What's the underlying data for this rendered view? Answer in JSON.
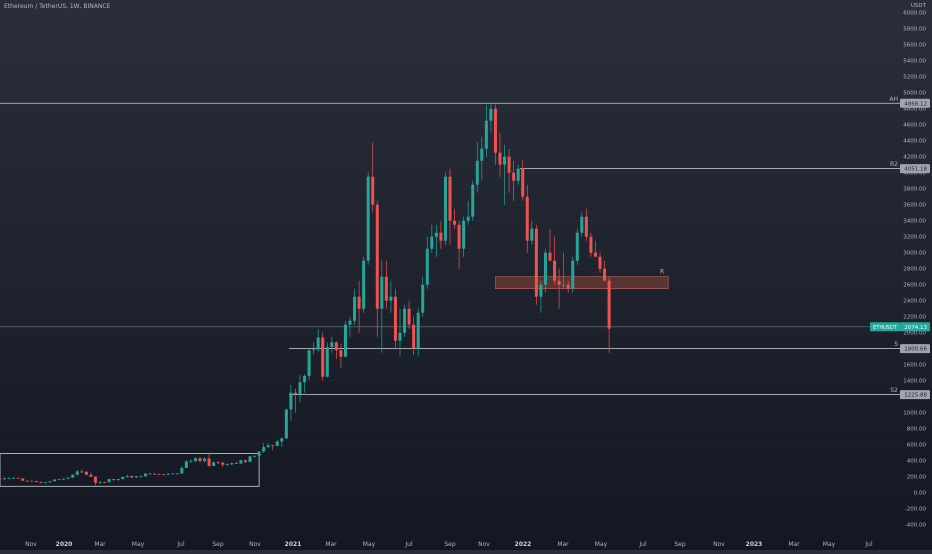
{
  "header": {
    "symbol_line": "Ethereum / TetherUS, 1W, BINANCE",
    "currency": "USDT"
  },
  "colors": {
    "up": "#26a69a",
    "down": "#ef5350",
    "level_line": "#d1d4dc",
    "price_line": "#787b86",
    "label_bg": "#a0a4ae",
    "label_current_bg": "#26a69a",
    "zone_fill": "#6d3b34",
    "axis_text": "#b2b5be"
  },
  "chart_data": {
    "type": "candlestick",
    "title": "Ethereum / TetherUS, 1W, BINANCE",
    "x_ticks": [
      "Nov",
      "2020",
      "Mar",
      "May",
      "Jul",
      "Sep",
      "Nov",
      "2021",
      "Mar",
      "May",
      "Jul",
      "Sep",
      "Nov",
      "2022",
      "Mar",
      "May",
      "Jul",
      "Sep",
      "Nov",
      "2023",
      "Mar",
      "May",
      "Jul"
    ],
    "x_range": [
      "2019-10-14",
      "2023-07-31"
    ],
    "y_ticks": [
      -400,
      -200,
      0,
      200,
      400,
      600,
      800,
      1000,
      1200,
      1400,
      1600,
      1800,
      2000,
      2200,
      2400,
      2600,
      2800,
      3000,
      3200,
      3400,
      3600,
      3800,
      4000,
      4200,
      4400,
      4600,
      4800,
      5000,
      5200,
      5400,
      5600,
      5800,
      6000
    ],
    "ylim": [
      -500,
      6100
    ],
    "y_tick_format": "2dp",
    "y_unit": "USDT",
    "levels": [
      {
        "tag": "AH",
        "value": 4868.12
      },
      {
        "tag": "R2",
        "value": 4051.18
      },
      {
        "tag": "S",
        "value": 1800.66
      },
      {
        "tag": "S2",
        "value": 1225.88
      }
    ],
    "current_price": {
      "symbol": "ETHUSDT",
      "value": 2074.13
    },
    "zone": {
      "tag": "R",
      "low": 2550,
      "high": 2700,
      "start": "2021-11-15",
      "end": "2022-08-08"
    },
    "box": {
      "low": 80,
      "high": 490,
      "start": "2019-10-14",
      "end": "2020-11-16"
    },
    "candles": [
      {
        "t": "2019-10-14",
        "o": 175,
        "h": 185,
        "l": 165,
        "c": 170
      },
      {
        "t": "2019-10-21",
        "o": 170,
        "h": 190,
        "l": 160,
        "c": 180
      },
      {
        "t": "2019-10-28",
        "o": 180,
        "h": 190,
        "l": 175,
        "c": 183
      },
      {
        "t": "2019-11-04",
        "o": 183,
        "h": 195,
        "l": 175,
        "c": 185
      },
      {
        "t": "2019-11-11",
        "o": 185,
        "h": 190,
        "l": 175,
        "c": 178
      },
      {
        "t": "2019-11-18",
        "o": 178,
        "h": 180,
        "l": 145,
        "c": 150
      },
      {
        "t": "2019-11-25",
        "o": 150,
        "h": 155,
        "l": 140,
        "c": 148
      },
      {
        "t": "2019-12-02",
        "o": 148,
        "h": 152,
        "l": 140,
        "c": 145
      },
      {
        "t": "2019-12-09",
        "o": 145,
        "h": 150,
        "l": 130,
        "c": 133
      },
      {
        "t": "2019-12-16",
        "o": 133,
        "h": 140,
        "l": 118,
        "c": 128
      },
      {
        "t": "2019-12-23",
        "o": 128,
        "h": 135,
        "l": 125,
        "c": 130
      },
      {
        "t": "2019-12-30",
        "o": 130,
        "h": 145,
        "l": 127,
        "c": 143
      },
      {
        "t": "2020-01-06",
        "o": 143,
        "h": 170,
        "l": 140,
        "c": 165
      },
      {
        "t": "2020-01-13",
        "o": 165,
        "h": 175,
        "l": 160,
        "c": 168
      },
      {
        "t": "2020-01-20",
        "o": 168,
        "h": 180,
        "l": 160,
        "c": 175
      },
      {
        "t": "2020-01-27",
        "o": 175,
        "h": 190,
        "l": 170,
        "c": 188
      },
      {
        "t": "2020-02-03",
        "o": 188,
        "h": 230,
        "l": 185,
        "c": 225
      },
      {
        "t": "2020-02-10",
        "o": 225,
        "h": 285,
        "l": 220,
        "c": 265
      },
      {
        "t": "2020-02-17",
        "o": 265,
        "h": 290,
        "l": 245,
        "c": 262
      },
      {
        "t": "2020-02-24",
        "o": 262,
        "h": 270,
        "l": 220,
        "c": 225
      },
      {
        "t": "2020-03-02",
        "o": 225,
        "h": 250,
        "l": 195,
        "c": 200
      },
      {
        "t": "2020-03-09",
        "o": 200,
        "h": 205,
        "l": 90,
        "c": 125
      },
      {
        "t": "2020-03-16",
        "o": 125,
        "h": 150,
        "l": 110,
        "c": 132
      },
      {
        "t": "2020-03-23",
        "o": 132,
        "h": 140,
        "l": 125,
        "c": 130
      },
      {
        "t": "2020-03-30",
        "o": 130,
        "h": 175,
        "l": 128,
        "c": 170
      },
      {
        "t": "2020-04-06",
        "o": 170,
        "h": 175,
        "l": 150,
        "c": 158
      },
      {
        "t": "2020-04-13",
        "o": 158,
        "h": 175,
        "l": 150,
        "c": 170
      },
      {
        "t": "2020-04-20",
        "o": 170,
        "h": 200,
        "l": 165,
        "c": 197
      },
      {
        "t": "2020-04-27",
        "o": 197,
        "h": 225,
        "l": 192,
        "c": 208
      },
      {
        "t": "2020-05-04",
        "o": 208,
        "h": 215,
        "l": 185,
        "c": 190
      },
      {
        "t": "2020-05-11",
        "o": 190,
        "h": 210,
        "l": 185,
        "c": 205
      },
      {
        "t": "2020-05-18",
        "o": 205,
        "h": 215,
        "l": 195,
        "c": 205
      },
      {
        "t": "2020-05-25",
        "o": 205,
        "h": 245,
        "l": 200,
        "c": 240
      },
      {
        "t": "2020-06-01",
        "o": 240,
        "h": 250,
        "l": 232,
        "c": 238
      },
      {
        "t": "2020-06-08",
        "o": 238,
        "h": 245,
        "l": 225,
        "c": 232
      },
      {
        "t": "2020-06-15",
        "o": 232,
        "h": 240,
        "l": 225,
        "c": 230
      },
      {
        "t": "2020-06-22",
        "o": 230,
        "h": 235,
        "l": 220,
        "c": 225
      },
      {
        "t": "2020-06-29",
        "o": 225,
        "h": 240,
        "l": 222,
        "c": 238
      },
      {
        "t": "2020-07-06",
        "o": 238,
        "h": 245,
        "l": 230,
        "c": 240
      },
      {
        "t": "2020-07-13",
        "o": 240,
        "h": 245,
        "l": 230,
        "c": 238
      },
      {
        "t": "2020-07-20",
        "o": 238,
        "h": 330,
        "l": 236,
        "c": 310
      },
      {
        "t": "2020-07-27",
        "o": 310,
        "h": 410,
        "l": 305,
        "c": 390
      },
      {
        "t": "2020-08-03",
        "o": 390,
        "h": 420,
        "l": 370,
        "c": 395
      },
      {
        "t": "2020-08-10",
        "o": 395,
        "h": 440,
        "l": 380,
        "c": 430
      },
      {
        "t": "2020-08-17",
        "o": 430,
        "h": 445,
        "l": 380,
        "c": 395
      },
      {
        "t": "2020-08-24",
        "o": 395,
        "h": 440,
        "l": 380,
        "c": 428
      },
      {
        "t": "2020-08-31",
        "o": 428,
        "h": 490,
        "l": 320,
        "c": 335
      },
      {
        "t": "2020-09-07",
        "o": 335,
        "h": 390,
        "l": 330,
        "c": 380
      },
      {
        "t": "2020-09-14",
        "o": 380,
        "h": 395,
        "l": 360,
        "c": 375
      },
      {
        "t": "2020-09-21",
        "o": 375,
        "h": 385,
        "l": 320,
        "c": 350
      },
      {
        "t": "2020-09-28",
        "o": 350,
        "h": 365,
        "l": 335,
        "c": 355
      },
      {
        "t": "2020-10-05",
        "o": 355,
        "h": 375,
        "l": 345,
        "c": 370
      },
      {
        "t": "2020-10-12",
        "o": 370,
        "h": 385,
        "l": 360,
        "c": 365
      },
      {
        "t": "2020-10-19",
        "o": 365,
        "h": 415,
        "l": 360,
        "c": 405
      },
      {
        "t": "2020-10-26",
        "o": 405,
        "h": 410,
        "l": 370,
        "c": 385
      },
      {
        "t": "2020-11-02",
        "o": 385,
        "h": 460,
        "l": 380,
        "c": 455
      },
      {
        "t": "2020-11-09",
        "o": 455,
        "h": 470,
        "l": 440,
        "c": 460
      },
      {
        "t": "2020-11-16",
        "o": 460,
        "h": 520,
        "l": 455,
        "c": 515
      },
      {
        "t": "2020-11-23",
        "o": 515,
        "h": 620,
        "l": 500,
        "c": 570
      },
      {
        "t": "2020-11-30",
        "o": 570,
        "h": 620,
        "l": 560,
        "c": 590
      },
      {
        "t": "2020-12-07",
        "o": 590,
        "h": 600,
        "l": 530,
        "c": 585
      },
      {
        "t": "2020-12-14",
        "o": 585,
        "h": 665,
        "l": 580,
        "c": 640
      },
      {
        "t": "2020-12-21",
        "o": 640,
        "h": 690,
        "l": 570,
        "c": 680
      },
      {
        "t": "2020-12-28",
        "o": 680,
        "h": 1050,
        "l": 670,
        "c": 1040
      },
      {
        "t": "2021-01-04",
        "o": 1040,
        "h": 1350,
        "l": 900,
        "c": 1250
      },
      {
        "t": "2021-01-11",
        "o": 1250,
        "h": 1300,
        "l": 1000,
        "c": 1230
      },
      {
        "t": "2021-01-18",
        "o": 1230,
        "h": 1470,
        "l": 1130,
        "c": 1380
      },
      {
        "t": "2021-01-25",
        "o": 1380,
        "h": 1480,
        "l": 1250,
        "c": 1460
      },
      {
        "t": "2021-02-01",
        "o": 1460,
        "h": 1800,
        "l": 1400,
        "c": 1780
      },
      {
        "t": "2021-02-08",
        "o": 1780,
        "h": 1880,
        "l": 1730,
        "c": 1790
      },
      {
        "t": "2021-02-15",
        "o": 1790,
        "h": 2040,
        "l": 1760,
        "c": 1940
      },
      {
        "t": "2021-02-22",
        "o": 1940,
        "h": 2000,
        "l": 1400,
        "c": 1450
      },
      {
        "t": "2021-03-01",
        "o": 1450,
        "h": 1880,
        "l": 1440,
        "c": 1820
      },
      {
        "t": "2021-03-08",
        "o": 1820,
        "h": 1950,
        "l": 1750,
        "c": 1880
      },
      {
        "t": "2021-03-15",
        "o": 1880,
        "h": 1890,
        "l": 1670,
        "c": 1780
      },
      {
        "t": "2021-03-22",
        "o": 1780,
        "h": 1860,
        "l": 1560,
        "c": 1700
      },
      {
        "t": "2021-03-29",
        "o": 1700,
        "h": 2150,
        "l": 1700,
        "c": 2100
      },
      {
        "t": "2021-04-05",
        "o": 2100,
        "h": 2200,
        "l": 1950,
        "c": 2150
      },
      {
        "t": "2021-04-12",
        "o": 2150,
        "h": 2550,
        "l": 2100,
        "c": 2450
      },
      {
        "t": "2021-04-19",
        "o": 2450,
        "h": 2650,
        "l": 2000,
        "c": 2300
      },
      {
        "t": "2021-04-26",
        "o": 2300,
        "h": 2950,
        "l": 2250,
        "c": 2900
      },
      {
        "t": "2021-05-03",
        "o": 2900,
        "h": 4000,
        "l": 2850,
        "c": 3950
      },
      {
        "t": "2021-05-10",
        "o": 3950,
        "h": 4380,
        "l": 3500,
        "c": 3600
      },
      {
        "t": "2021-05-17",
        "o": 3600,
        "h": 3650,
        "l": 1950,
        "c": 2300
      },
      {
        "t": "2021-05-24",
        "o": 2300,
        "h": 2900,
        "l": 1750,
        "c": 2700
      },
      {
        "t": "2021-05-31",
        "o": 2700,
        "h": 2900,
        "l": 2300,
        "c": 2400
      },
      {
        "t": "2021-06-07",
        "o": 2400,
        "h": 2650,
        "l": 2250,
        "c": 2450
      },
      {
        "t": "2021-06-14",
        "o": 2450,
        "h": 2550,
        "l": 1800,
        "c": 1900
      },
      {
        "t": "2021-06-21",
        "o": 1900,
        "h": 2300,
        "l": 1700,
        "c": 2000
      },
      {
        "t": "2021-06-28",
        "o": 2000,
        "h": 2350,
        "l": 1950,
        "c": 2300
      },
      {
        "t": "2021-07-05",
        "o": 2300,
        "h": 2400,
        "l": 2050,
        "c": 2100
      },
      {
        "t": "2021-07-12",
        "o": 2100,
        "h": 2200,
        "l": 1720,
        "c": 1800
      },
      {
        "t": "2021-07-19",
        "o": 1800,
        "h": 2300,
        "l": 1700,
        "c": 2250
      },
      {
        "t": "2021-07-26",
        "o": 2250,
        "h": 2700,
        "l": 2200,
        "c": 2600
      },
      {
        "t": "2021-08-02",
        "o": 2600,
        "h": 3200,
        "l": 2550,
        "c": 3050
      },
      {
        "t": "2021-08-09",
        "o": 3050,
        "h": 3350,
        "l": 3000,
        "c": 3200
      },
      {
        "t": "2021-08-16",
        "o": 3200,
        "h": 3350,
        "l": 2950,
        "c": 3250
      },
      {
        "t": "2021-08-23",
        "o": 3250,
        "h": 3400,
        "l": 3050,
        "c": 3150
      },
      {
        "t": "2021-08-30",
        "o": 3150,
        "h": 4000,
        "l": 3100,
        "c": 3950
      },
      {
        "t": "2021-09-06",
        "o": 3950,
        "h": 4050,
        "l": 3100,
        "c": 3400
      },
      {
        "t": "2021-09-13",
        "o": 3400,
        "h": 3550,
        "l": 3300,
        "c": 3350
      },
      {
        "t": "2021-09-20",
        "o": 3350,
        "h": 3400,
        "l": 2800,
        "c": 3050
      },
      {
        "t": "2021-09-27",
        "o": 3050,
        "h": 3450,
        "l": 2950,
        "c": 3400
      },
      {
        "t": "2021-10-04",
        "o": 3400,
        "h": 3650,
        "l": 3350,
        "c": 3450
      },
      {
        "t": "2021-10-11",
        "o": 3450,
        "h": 3900,
        "l": 3400,
        "c": 3850
      },
      {
        "t": "2021-10-18",
        "o": 3850,
        "h": 4380,
        "l": 3750,
        "c": 4150
      },
      {
        "t": "2021-10-25",
        "o": 4150,
        "h": 4450,
        "l": 3900,
        "c": 4300
      },
      {
        "t": "2021-11-01",
        "o": 4300,
        "h": 4850,
        "l": 4200,
        "c": 4650
      },
      {
        "t": "2021-11-08",
        "o": 4650,
        "h": 4870,
        "l": 4500,
        "c": 4800
      },
      {
        "t": "2021-11-15",
        "o": 4800,
        "h": 4850,
        "l": 4100,
        "c": 4250
      },
      {
        "t": "2021-11-22",
        "o": 4250,
        "h": 4500,
        "l": 3950,
        "c": 4100
      },
      {
        "t": "2021-11-29",
        "o": 4100,
        "h": 4350,
        "l": 3600,
        "c": 4200
      },
      {
        "t": "2021-12-06",
        "o": 4200,
        "h": 4300,
        "l": 3750,
        "c": 4000
      },
      {
        "t": "2021-12-13",
        "o": 4000,
        "h": 4150,
        "l": 3650,
        "c": 3900
      },
      {
        "t": "2021-12-20",
        "o": 3900,
        "h": 4100,
        "l": 3850,
        "c": 4050
      },
      {
        "t": "2021-12-27",
        "o": 4050,
        "h": 4150,
        "l": 3650,
        "c": 3700
      },
      {
        "t": "2022-01-03",
        "o": 3700,
        "h": 3850,
        "l": 3000,
        "c": 3150
      },
      {
        "t": "2022-01-10",
        "o": 3150,
        "h": 3400,
        "l": 3100,
        "c": 3300
      },
      {
        "t": "2022-01-17",
        "o": 3300,
        "h": 3350,
        "l": 2350,
        "c": 2450
      },
      {
        "t": "2022-01-24",
        "o": 2450,
        "h": 2650,
        "l": 2250,
        "c": 2600
      },
      {
        "t": "2022-01-31",
        "o": 2600,
        "h": 3050,
        "l": 2500,
        "c": 3000
      },
      {
        "t": "2022-02-07",
        "o": 3000,
        "h": 3300,
        "l": 2900,
        "c": 2900
      },
      {
        "t": "2022-02-14",
        "o": 2900,
        "h": 3200,
        "l": 2600,
        "c": 2650
      },
      {
        "t": "2022-02-21",
        "o": 2650,
        "h": 2800,
        "l": 2300,
        "c": 2600
      },
      {
        "t": "2022-02-28",
        "o": 2600,
        "h": 3000,
        "l": 2550,
        "c": 2600
      },
      {
        "t": "2022-03-07",
        "o": 2600,
        "h": 2650,
        "l": 2500,
        "c": 2550
      },
      {
        "t": "2022-03-14",
        "o": 2550,
        "h": 2950,
        "l": 2500,
        "c": 2900
      },
      {
        "t": "2022-03-21",
        "o": 2900,
        "h": 3300,
        "l": 2850,
        "c": 3250
      },
      {
        "t": "2022-03-28",
        "o": 3250,
        "h": 3500,
        "l": 3200,
        "c": 3450
      },
      {
        "t": "2022-04-04",
        "o": 3450,
        "h": 3550,
        "l": 3150,
        "c": 3200
      },
      {
        "t": "2022-04-11",
        "o": 3200,
        "h": 3250,
        "l": 2950,
        "c": 3000
      },
      {
        "t": "2022-04-18",
        "o": 3000,
        "h": 3150,
        "l": 2950,
        "c": 2950
      },
      {
        "t": "2022-04-25",
        "o": 2950,
        "h": 3000,
        "l": 2750,
        "c": 2800
      },
      {
        "t": "2022-05-02",
        "o": 2800,
        "h": 2900,
        "l": 2650,
        "c": 2650
      },
      {
        "t": "2022-05-09",
        "o": 2650,
        "h": 2700,
        "l": 1750,
        "c": 2050
      }
    ]
  }
}
